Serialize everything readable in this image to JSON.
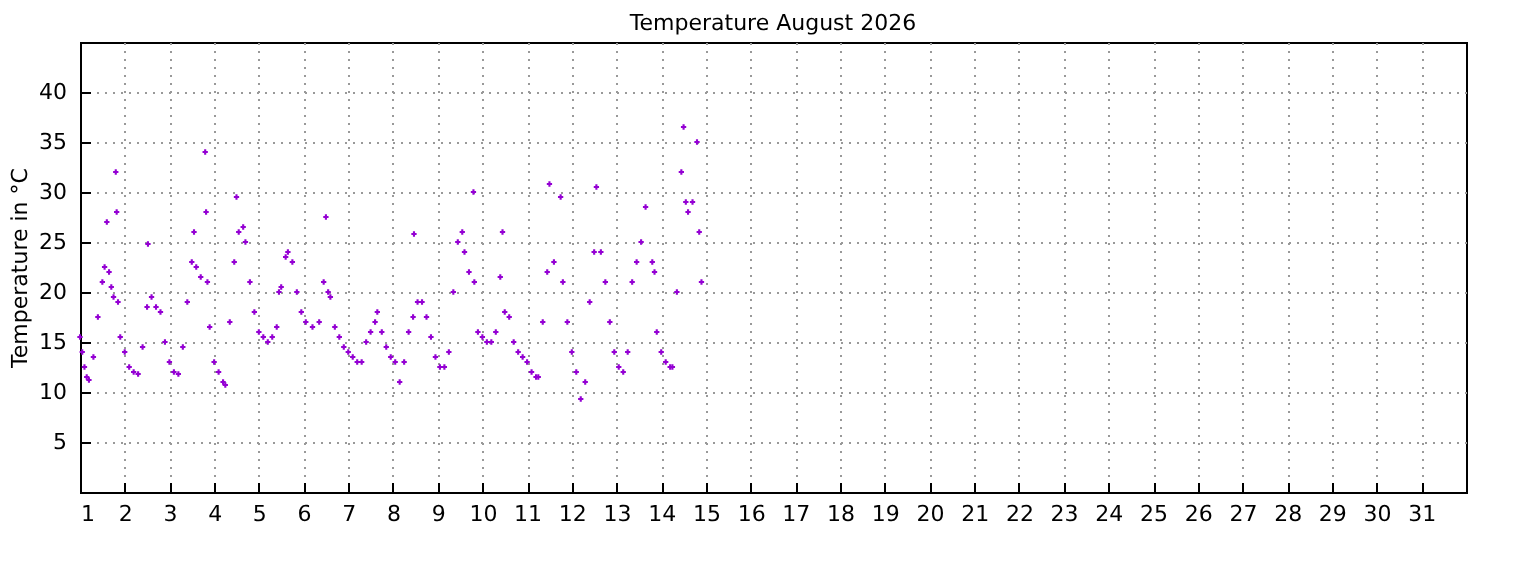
{
  "chart_data": {
    "type": "scatter",
    "title": "Temperature August 2026",
    "ylabel": "Temperature in °C",
    "xlim": [
      1,
      32
    ],
    "xticks": [
      1,
      2,
      3,
      4,
      5,
      6,
      7,
      8,
      9,
      10,
      11,
      12,
      13,
      14,
      15,
      16,
      17,
      18,
      19,
      20,
      21,
      22,
      23,
      24,
      25,
      26,
      27,
      28,
      29,
      30,
      31
    ],
    "ylim": [
      0,
      45
    ],
    "yticks": [
      5,
      10,
      15,
      20,
      25,
      30,
      35,
      40
    ],
    "grid": true,
    "marker": "cross",
    "series": [
      {
        "color": "#9400d3",
        "x": [
          1.0,
          1.05,
          1.1,
          1.15,
          1.2,
          1.3,
          1.4,
          1.5,
          1.55,
          1.6,
          1.65,
          1.7,
          1.75,
          1.8,
          1.82,
          1.85,
          1.9,
          2.0,
          2.1,
          2.2,
          2.3,
          2.4,
          2.5,
          2.52,
          2.6,
          2.7,
          2.8,
          2.9,
          3.0,
          3.1,
          3.2,
          3.3,
          3.4,
          3.5,
          3.55,
          3.6,
          3.7,
          3.8,
          3.82,
          3.85,
          3.9,
          4.0,
          4.1,
          4.2,
          4.25,
          4.35,
          4.45,
          4.5,
          4.55,
          4.65,
          4.7,
          4.8,
          4.9,
          5.0,
          5.1,
          5.2,
          5.3,
          5.4,
          5.45,
          5.5,
          5.6,
          5.65,
          5.75,
          5.85,
          5.95,
          6.05,
          6.2,
          6.35,
          6.45,
          6.5,
          6.55,
          6.6,
          6.7,
          6.8,
          6.9,
          7.0,
          7.1,
          7.2,
          7.3,
          7.4,
          7.5,
          7.6,
          7.65,
          7.75,
          7.85,
          7.95,
          8.05,
          8.15,
          8.25,
          8.35,
          8.45,
          8.47,
          8.55,
          8.65,
          8.75,
          8.85,
          8.95,
          9.05,
          9.15,
          9.25,
          9.35,
          9.45,
          9.55,
          9.6,
          9.7,
          9.8,
          9.82,
          9.9,
          10.0,
          10.1,
          10.2,
          10.3,
          10.4,
          10.45,
          10.5,
          10.6,
          10.7,
          10.8,
          10.9,
          11.0,
          11.1,
          11.2,
          11.25,
          11.35,
          11.45,
          11.5,
          11.6,
          11.75,
          11.8,
          11.9,
          12.0,
          12.1,
          12.2,
          12.3,
          12.4,
          12.5,
          12.55,
          12.65,
          12.75,
          12.85,
          12.95,
          13.05,
          13.15,
          13.25,
          13.35,
          13.45,
          13.55,
          13.65,
          13.8,
          13.85,
          13.9,
          14.0,
          14.1,
          14.2,
          14.25,
          14.35,
          14.45,
          14.5,
          14.55,
          14.6,
          14.7,
          14.8,
          14.85,
          14.9
        ],
        "values": [
          15.5,
          14,
          12.5,
          11.5,
          11.2,
          13.5,
          17.5,
          21,
          22.5,
          27,
          22,
          20.5,
          19.5,
          32,
          28,
          19,
          15.5,
          14,
          12.5,
          12,
          11.8,
          14.5,
          18.5,
          24.8,
          19.5,
          18.5,
          18,
          15,
          13,
          12,
          11.8,
          14.5,
          19,
          23,
          26,
          22.5,
          21.5,
          34,
          28,
          21,
          16.5,
          13,
          12,
          11,
          10.7,
          17,
          23,
          29.5,
          26,
          26.5,
          25,
          21,
          18,
          16,
          15.5,
          15,
          15.5,
          16.5,
          20,
          20.5,
          23.5,
          24,
          23,
          20,
          18,
          17,
          16.5,
          17,
          21,
          27.5,
          20,
          19.5,
          16.5,
          15.5,
          14.5,
          14,
          13.5,
          13,
          13,
          15,
          16,
          17,
          18,
          16,
          14.5,
          13.5,
          13,
          11,
          13,
          16,
          17.5,
          25.8,
          19,
          19,
          17.5,
          15.5,
          13.5,
          12.5,
          12.5,
          14,
          20,
          25,
          26,
          24,
          22,
          30,
          21,
          16,
          15.5,
          15,
          15,
          16,
          21.5,
          26,
          18,
          17.5,
          15,
          14,
          13.5,
          13,
          12,
          11.5,
          11.5,
          17,
          22,
          30.8,
          23,
          29.5,
          21,
          17,
          14,
          12,
          9.3,
          11,
          19,
          24,
          30.5,
          24,
          21,
          17,
          14,
          12.5,
          12,
          14,
          21,
          23,
          25,
          28.5,
          23,
          22,
          16,
          14,
          13,
          12.5,
          12.5,
          20,
          32,
          36.5,
          29,
          28,
          29,
          35,
          26,
          21
        ]
      }
    ]
  }
}
